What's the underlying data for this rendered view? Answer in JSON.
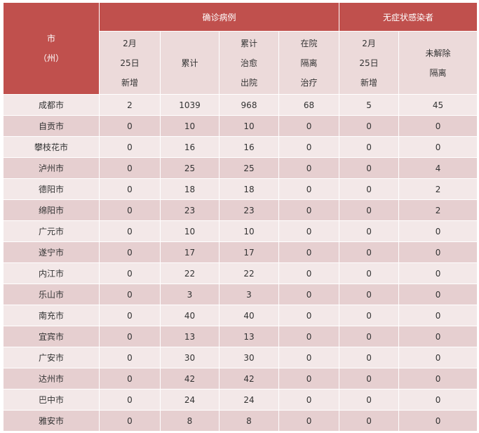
{
  "table": {
    "header": {
      "region": [
        "市",
        "（州）"
      ],
      "groups": [
        "确诊病例",
        "无症状感染者"
      ],
      "columns": [
        [
          "2月",
          "25日",
          "新增"
        ],
        [
          "累计"
        ],
        [
          "累计",
          "治愈",
          "出院"
        ],
        [
          "在院",
          "隔离",
          "治疗"
        ],
        [
          "2月",
          "25日",
          "新增"
        ],
        [
          "未解除",
          "隔离"
        ]
      ]
    },
    "rows": [
      [
        "成都市",
        2,
        1039,
        968,
        68,
        5,
        45
      ],
      [
        "自贡市",
        0,
        10,
        10,
        0,
        0,
        0
      ],
      [
        "攀枝花市",
        0,
        16,
        16,
        0,
        0,
        0
      ],
      [
        "泸州市",
        0,
        25,
        25,
        0,
        0,
        4
      ],
      [
        "德阳市",
        0,
        18,
        18,
        0,
        0,
        2
      ],
      [
        "绵阳市",
        0,
        23,
        23,
        0,
        0,
        2
      ],
      [
        "广元市",
        0,
        10,
        10,
        0,
        0,
        0
      ],
      [
        "遂宁市",
        0,
        17,
        17,
        0,
        0,
        0
      ],
      [
        "内江市",
        0,
        22,
        22,
        0,
        0,
        0
      ],
      [
        "乐山市",
        0,
        3,
        3,
        0,
        0,
        0
      ],
      [
        "南充市",
        0,
        40,
        40,
        0,
        0,
        0
      ],
      [
        "宜宾市",
        0,
        13,
        13,
        0,
        0,
        0
      ],
      [
        "广安市",
        0,
        30,
        30,
        0,
        0,
        0
      ],
      [
        "达州市",
        0,
        42,
        42,
        0,
        0,
        0
      ],
      [
        "巴中市",
        0,
        24,
        24,
        0,
        0,
        0
      ],
      [
        "雅安市",
        0,
        8,
        8,
        0,
        0,
        0
      ]
    ]
  }
}
